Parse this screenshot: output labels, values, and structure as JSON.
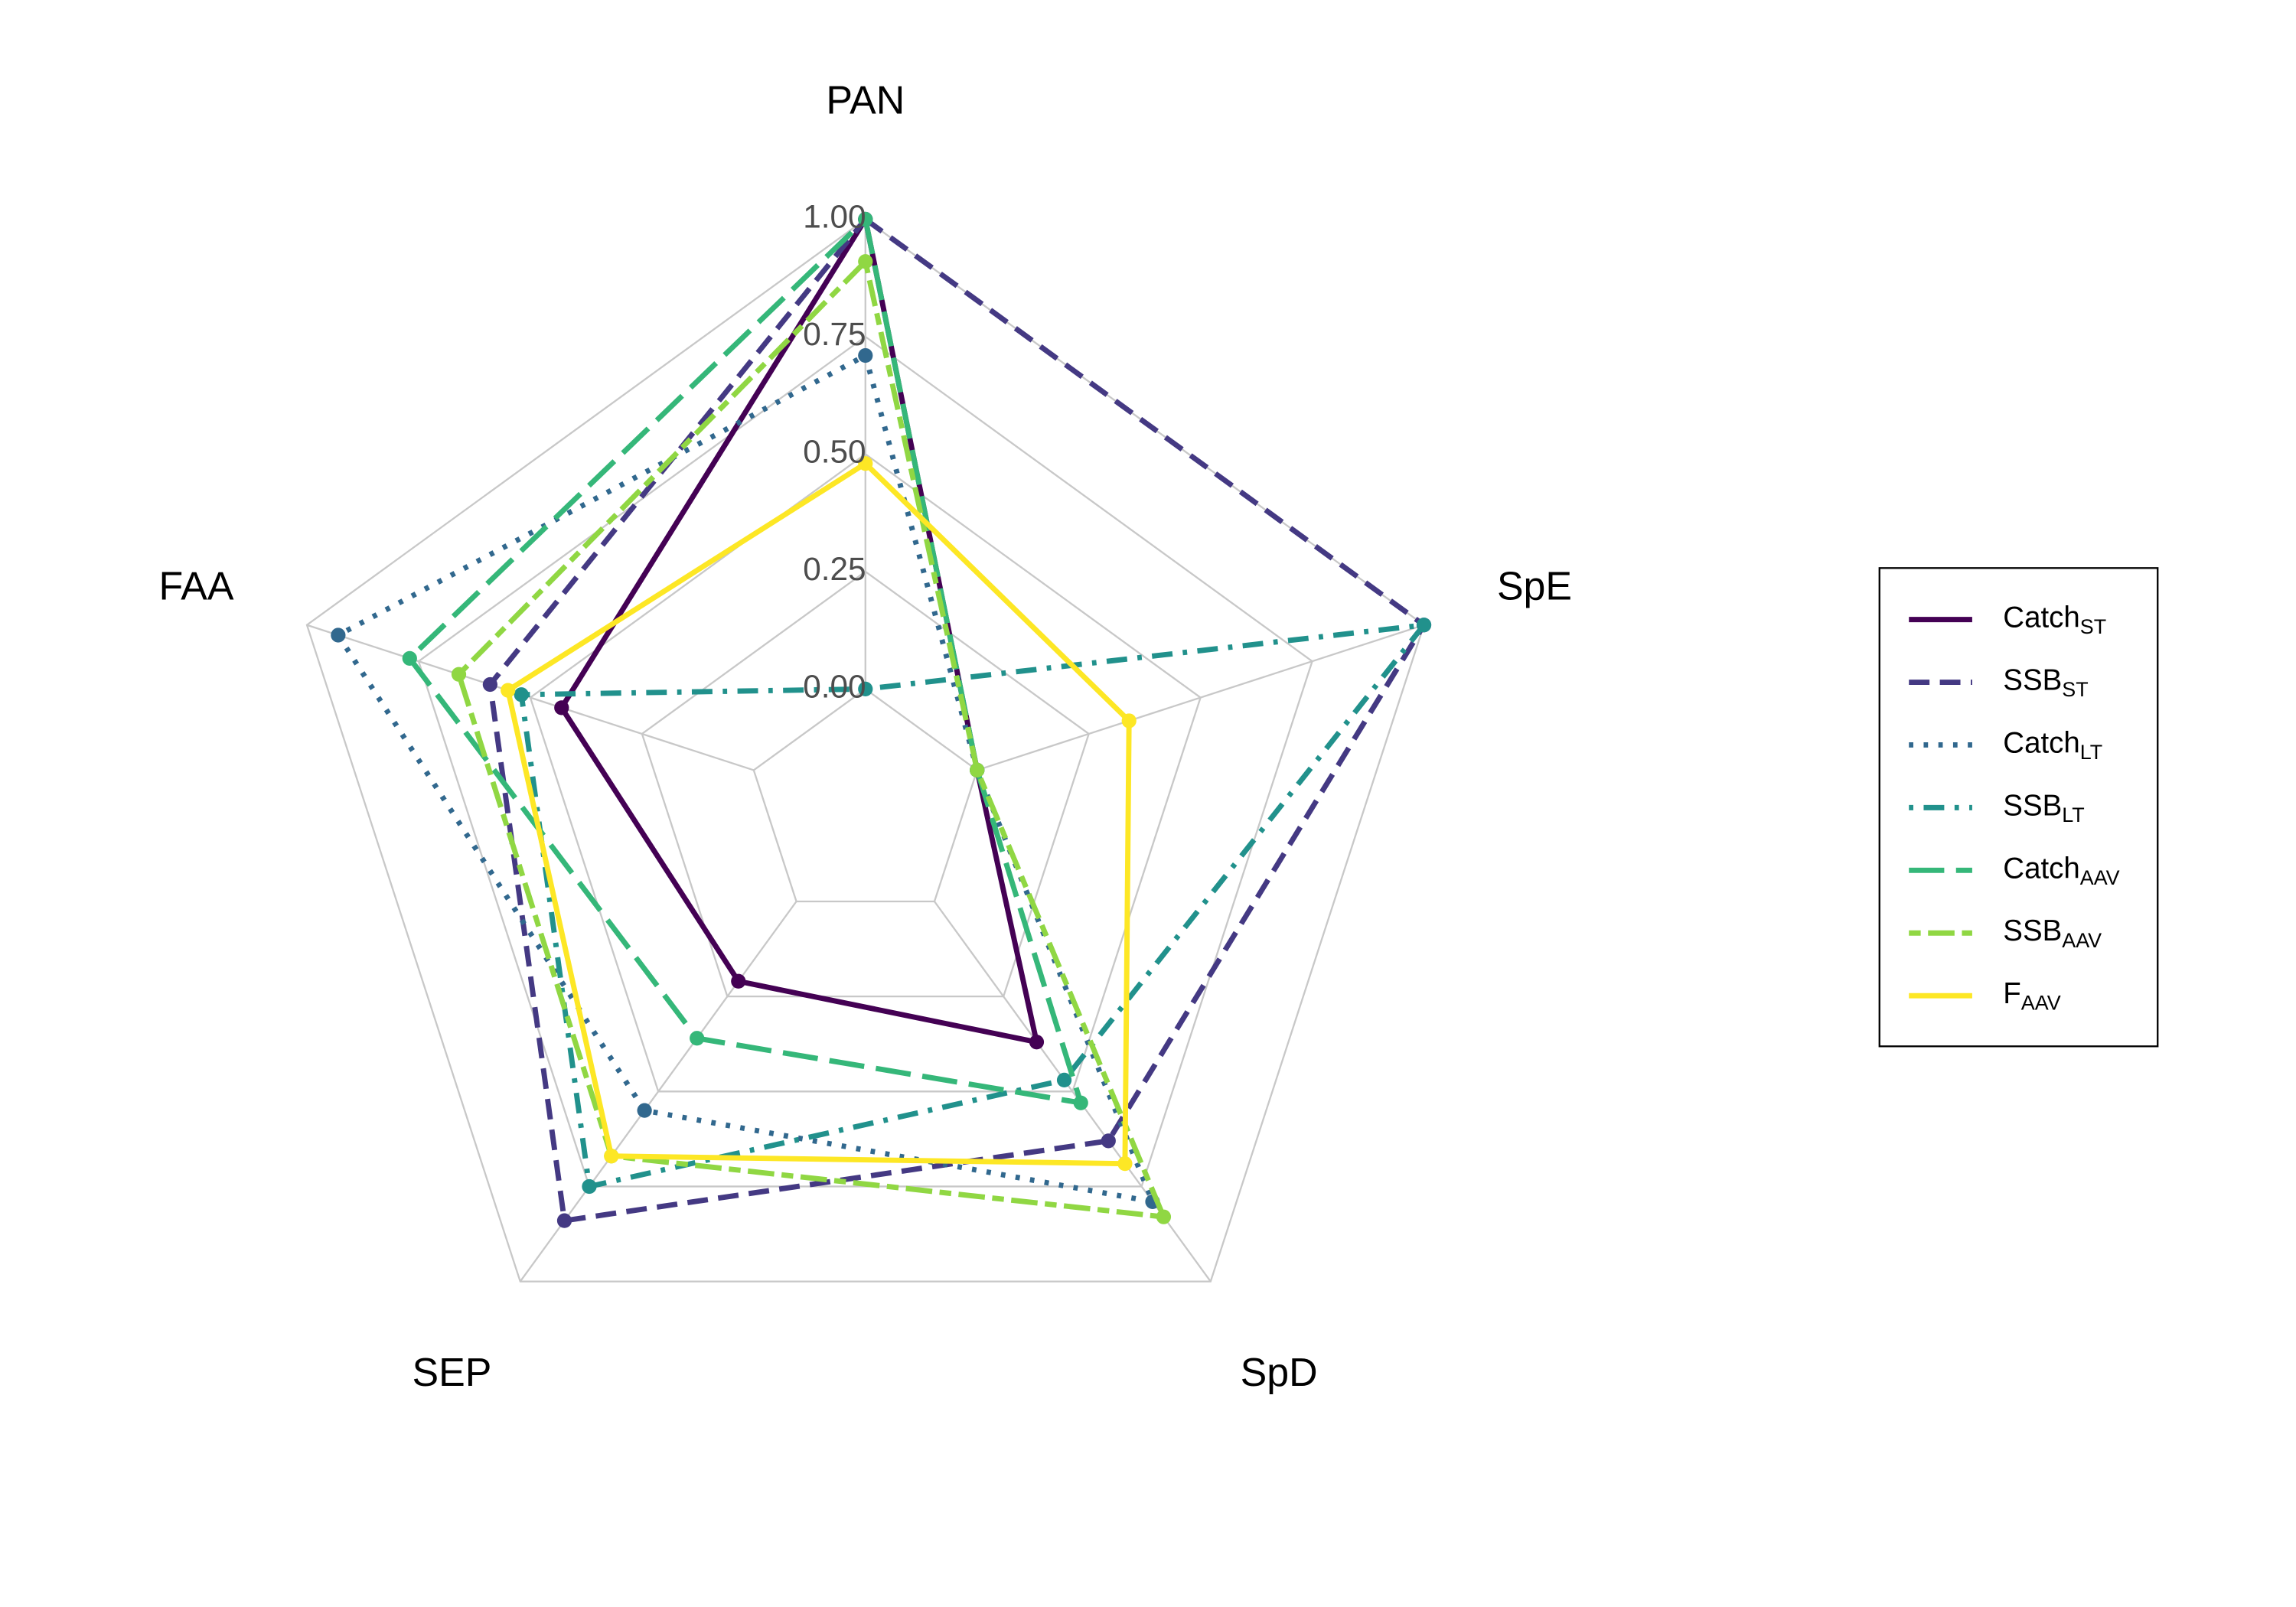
{
  "chart_data": {
    "type": "radar",
    "categories": [
      "PAN",
      "SpE",
      "SpD",
      "SEP",
      "FAA"
    ],
    "ylim": [
      -0.25,
      1
    ],
    "yticks": [
      {
        "value": 0,
        "label": "0.00"
      },
      {
        "value": 0.25,
        "label": "0.25"
      },
      {
        "value": 0.5,
        "label": "0.50"
      },
      {
        "value": 0.75,
        "label": "0.75"
      },
      {
        "value": 1,
        "label": "1.00"
      }
    ],
    "grid": true,
    "legend": "right",
    "series": [
      {
        "name": "Catch",
        "subscript": "ST",
        "color": "#440154",
        "linetype": "solid",
        "values": [
          1.0,
          0,
          0.37,
          0.21,
          0.43
        ]
      },
      {
        "name": "SSB",
        "subscript": "ST",
        "color": "#443983",
        "linetype": "dashed",
        "values": [
          1.0,
          1.0,
          0.63,
          0.84,
          0.59
        ]
      },
      {
        "name": "Catch",
        "subscript": "LT",
        "color": "#31688e",
        "linetype": "dotted",
        "values": [
          0.71,
          0,
          0.79,
          0.55,
          0.93
        ]
      },
      {
        "name": "SSB",
        "subscript": "LT",
        "color": "#21918c",
        "linetype": "dotdash",
        "values": [
          0,
          1.0,
          0.47,
          0.75,
          0.52
        ]
      },
      {
        "name": "Catch",
        "subscript": "AAV",
        "color": "#35b779",
        "linetype": "longdash",
        "values": [
          1.0,
          0,
          0.53,
          0.36,
          0.77
        ]
      },
      {
        "name": "SSB",
        "subscript": "AAV",
        "color": "#90d743",
        "linetype": "twodash",
        "values": [
          0.91,
          0,
          0.83,
          0.67,
          0.66
        ]
      },
      {
        "name": "F",
        "subscript": "AAV",
        "color": "#fde725",
        "linetype": "solid",
        "values": [
          0.48,
          0.34,
          0.69,
          0.67,
          0.55
        ]
      }
    ]
  }
}
